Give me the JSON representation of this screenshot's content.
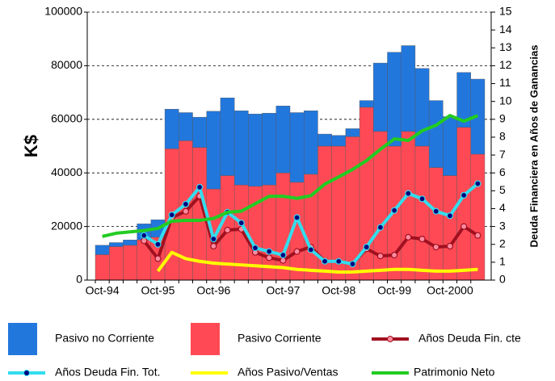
{
  "chart_data": {
    "type": "bar",
    "categories": [
      "Oct-94",
      null,
      null,
      null,
      "Oct-95",
      null,
      null,
      null,
      "Oct-96",
      null,
      null,
      null,
      null,
      "Oct-97",
      null,
      null,
      null,
      "Oct-98",
      null,
      null,
      null,
      "Oct-99",
      null,
      null,
      null,
      "Oct-2000",
      null,
      null
    ],
    "y_label": "K$",
    "y2_label": "Deuda Financiera en Años de Ganancias",
    "ylim": [
      0,
      100000
    ],
    "yticks": [
      0,
      20000,
      40000,
      60000,
      80000,
      100000
    ],
    "y2lim": [
      0,
      15
    ],
    "y2ticks": [
      0,
      1,
      2,
      3,
      4,
      5,
      6,
      7,
      8,
      9,
      10,
      11,
      12,
      13,
      14,
      15
    ],
    "grid": true,
    "series": [
      {
        "name": "Pasivo no Corriente",
        "type": "bar",
        "color": "#2277dd",
        "values": [
          3500,
          1500,
          2000,
          6000,
          6500,
          14800,
          10500,
          11300,
          29000,
          29000,
          27700,
          27000,
          26800,
          25000,
          26000,
          23700,
          4500,
          4000,
          3000,
          2500,
          25500,
          35000,
          32000,
          29000,
          25000,
          22000,
          20500,
          28000
        ]
      },
      {
        "name": "Pasivo Corriente",
        "type": "bar",
        "color": "#ff4a55",
        "values": [
          9500,
          12500,
          13000,
          15000,
          16000,
          49000,
          52000,
          49500,
          34000,
          39000,
          35500,
          35000,
          35500,
          40000,
          36500,
          39500,
          50000,
          50000,
          53500,
          64500,
          55500,
          50000,
          55500,
          50000,
          42000,
          39000,
          57000,
          47000
        ]
      },
      {
        "name": "Años Deuda Fin. cte",
        "type": "line",
        "axis": "y2",
        "color": "#a01020",
        "marker_color": "#ff8aa0",
        "values": [
          null,
          null,
          null,
          2.2,
          1.2,
          3.5,
          3.85,
          4.7,
          1.9,
          2.8,
          2.85,
          1.55,
          1.25,
          1.1,
          1.6,
          1.85,
          1.05,
          1.05,
          0.9,
          1.75,
          1.35,
          1.4,
          2.4,
          2.3,
          1.85,
          1.9,
          3.0,
          2.5
        ]
      },
      {
        "name": "Años Deuda Fin. Tot.",
        "type": "line",
        "axis": "y2",
        "color": "#33ddee",
        "marker_color": "#000080",
        "values": [
          null,
          null,
          null,
          2.5,
          2.0,
          3.65,
          4.25,
          5.2,
          2.3,
          3.8,
          3.2,
          1.8,
          1.6,
          1.4,
          3.5,
          1.7,
          1.05,
          1.05,
          0.9,
          1.85,
          2.95,
          3.9,
          4.85,
          4.55,
          3.85,
          3.6,
          4.75,
          5.4
        ]
      },
      {
        "name": "Años Pasivo/Ventas",
        "type": "line",
        "axis": "y2",
        "color": "#ffff00",
        "values": [
          null,
          null,
          null,
          null,
          0.5,
          1.55,
          1.2,
          1.05,
          0.95,
          0.9,
          0.85,
          0.8,
          0.75,
          0.7,
          0.6,
          0.55,
          0.5,
          0.45,
          0.45,
          0.5,
          0.55,
          0.6,
          0.6,
          0.55,
          0.5,
          0.5,
          0.55,
          0.6
        ]
      },
      {
        "name": "Patrimonio Neto",
        "type": "line",
        "color": "#22cc22",
        "values": [
          16300,
          17500,
          18000,
          18500,
          19300,
          22000,
          22300,
          22300,
          23000,
          25300,
          25700,
          28500,
          31300,
          31300,
          30500,
          31500,
          35800,
          38500,
          41300,
          44600,
          48800,
          52700,
          52100,
          55700,
          57800,
          61400,
          59300,
          61400
        ]
      }
    ]
  }
}
